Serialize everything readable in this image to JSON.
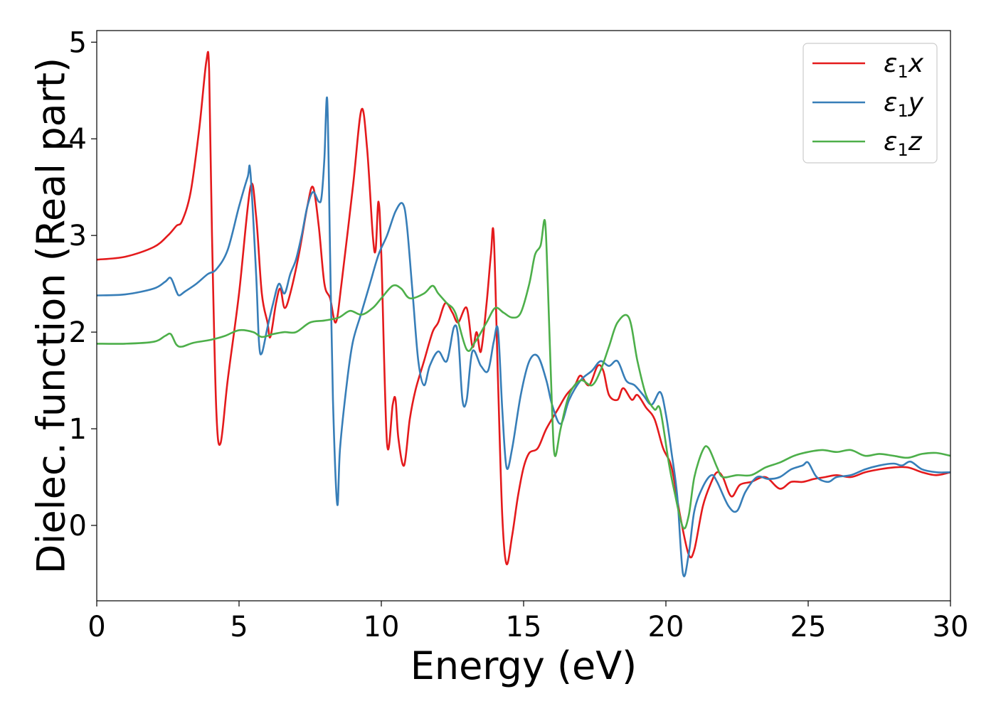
{
  "chart_data": {
    "type": "line",
    "xlabel": "Energy (eV)",
    "ylabel": "Dielec. function (Real part)",
    "xlim": [
      0,
      30
    ],
    "ylim": [
      -0.78,
      5.12
    ],
    "xticks": [
      0,
      5,
      10,
      15,
      20,
      25,
      30
    ],
    "yticks": [
      0,
      1,
      2,
      3,
      4,
      5
    ],
    "grid": false,
    "legend_position": "top-right",
    "series": [
      {
        "name": "ε₁x",
        "legend_base": "ε",
        "legend_sub": "1",
        "legend_axis": "x",
        "color": "#e41a1c",
        "x": [
          0,
          1,
          2,
          2.5,
          2.8,
          3.0,
          3.3,
          3.6,
          3.85,
          3.95,
          4.05,
          4.2,
          4.35,
          4.6,
          5.0,
          5.4,
          5.6,
          5.8,
          6.0,
          6.1,
          6.3,
          6.45,
          6.6,
          6.8,
          7.1,
          7.4,
          7.6,
          7.8,
          8.0,
          8.2,
          8.4,
          8.6,
          9.0,
          9.3,
          9.5,
          9.7,
          9.8,
          9.9,
          10.0,
          10.2,
          10.4,
          10.5,
          10.6,
          10.8,
          11.0,
          11.2,
          11.5,
          11.8,
          12.0,
          12.25,
          12.5,
          12.7,
          13.0,
          13.2,
          13.35,
          13.5,
          13.7,
          13.85,
          13.95,
          14.1,
          14.25,
          14.4,
          14.6,
          14.8,
          15.0,
          15.2,
          15.5,
          15.8,
          16.2,
          16.5,
          16.8,
          17.0,
          17.3,
          17.6,
          17.8,
          18.0,
          18.3,
          18.5,
          18.8,
          19.0,
          19.3,
          19.6,
          19.9,
          20.2,
          20.5,
          20.8,
          21.0,
          21.3,
          21.6,
          21.8,
          22.0,
          22.3,
          22.6,
          23.0,
          23.5,
          24.0,
          24.4,
          24.8,
          25.2,
          25.6,
          26.0,
          26.5,
          27.0,
          27.5,
          28.0,
          28.5,
          29.0,
          29.5,
          30.0
        ],
        "values": [
          2.75,
          2.78,
          2.88,
          3.0,
          3.1,
          3.15,
          3.45,
          4.1,
          4.8,
          4.7,
          3.0,
          1.2,
          0.85,
          1.5,
          2.4,
          3.5,
          3.2,
          2.4,
          2.1,
          1.95,
          2.3,
          2.45,
          2.25,
          2.4,
          2.8,
          3.3,
          3.5,
          3.1,
          2.5,
          2.35,
          2.1,
          2.5,
          3.5,
          4.3,
          3.9,
          3.0,
          2.85,
          3.35,
          2.8,
          0.85,
          1.25,
          1.3,
          0.9,
          0.62,
          1.1,
          1.4,
          1.7,
          2.0,
          2.1,
          2.3,
          2.2,
          2.1,
          2.25,
          1.85,
          2.0,
          1.8,
          2.3,
          2.8,
          3.0,
          1.5,
          0.1,
          -0.4,
          -0.1,
          0.3,
          0.6,
          0.75,
          0.8,
          1.0,
          1.2,
          1.35,
          1.45,
          1.55,
          1.45,
          1.65,
          1.6,
          1.35,
          1.3,
          1.42,
          1.3,
          1.35,
          1.22,
          1.1,
          0.8,
          0.6,
          0.1,
          -0.3,
          -0.25,
          0.2,
          0.45,
          0.55,
          0.5,
          0.3,
          0.42,
          0.45,
          0.5,
          0.38,
          0.45,
          0.45,
          0.48,
          0.5,
          0.52,
          0.5,
          0.55,
          0.58,
          0.6,
          0.6,
          0.55,
          0.52,
          0.55
        ]
      },
      {
        "name": "ε₁y",
        "legend_base": "ε",
        "legend_sub": "1",
        "legend_axis": "y",
        "color": "#377eb8",
        "x": [
          0,
          1,
          2,
          2.4,
          2.6,
          2.8,
          2.9,
          3.1,
          3.5,
          3.9,
          4.2,
          4.6,
          5.0,
          5.3,
          5.4,
          5.6,
          5.7,
          5.8,
          6.0,
          6.2,
          6.4,
          6.6,
          6.8,
          7.0,
          7.2,
          7.4,
          7.6,
          7.8,
          7.9,
          8.0,
          8.1,
          8.2,
          8.3,
          8.45,
          8.55,
          8.8,
          9.0,
          9.3,
          9.6,
          9.9,
          10.2,
          10.5,
          10.75,
          10.9,
          11.1,
          11.3,
          11.5,
          11.7,
          12.0,
          12.3,
          12.55,
          12.7,
          12.85,
          13.0,
          13.2,
          13.5,
          13.75,
          13.95,
          14.1,
          14.25,
          14.4,
          14.6,
          14.9,
          15.2,
          15.5,
          15.8,
          16.0,
          16.3,
          16.6,
          17.0,
          17.4,
          17.7,
          18.0,
          18.3,
          18.6,
          18.9,
          19.2,
          19.5,
          19.8,
          20.0,
          20.2,
          20.4,
          20.6,
          20.8,
          21.0,
          21.3,
          21.6,
          21.8,
          22.2,
          22.5,
          22.8,
          23.2,
          23.6,
          24.0,
          24.4,
          24.8,
          25.0,
          25.3,
          25.7,
          26.0,
          26.5,
          27.0,
          27.5,
          28.0,
          28.3,
          28.6,
          29.0,
          29.5,
          30.0
        ],
        "values": [
          2.38,
          2.39,
          2.45,
          2.52,
          2.56,
          2.42,
          2.38,
          2.42,
          2.5,
          2.6,
          2.65,
          2.85,
          3.3,
          3.6,
          3.65,
          2.6,
          1.9,
          1.78,
          2.05,
          2.3,
          2.5,
          2.4,
          2.6,
          2.75,
          3.0,
          3.3,
          3.45,
          3.35,
          3.4,
          3.8,
          4.4,
          2.8,
          1.3,
          0.22,
          0.8,
          1.5,
          1.9,
          2.2,
          2.5,
          2.8,
          3.0,
          3.25,
          3.33,
          3.1,
          2.4,
          1.7,
          1.45,
          1.65,
          1.8,
          1.7,
          2.05,
          1.95,
          1.3,
          1.3,
          1.8,
          1.65,
          1.6,
          1.9,
          2.02,
          1.2,
          0.6,
          0.8,
          1.35,
          1.7,
          1.75,
          1.5,
          1.25,
          1.05,
          1.3,
          1.5,
          1.6,
          1.7,
          1.65,
          1.7,
          1.5,
          1.45,
          1.35,
          1.25,
          1.38,
          1.15,
          0.75,
          0.3,
          -0.5,
          -0.3,
          0.15,
          0.4,
          0.52,
          0.45,
          0.2,
          0.15,
          0.35,
          0.5,
          0.48,
          0.5,
          0.58,
          0.62,
          0.65,
          0.5,
          0.45,
          0.5,
          0.52,
          0.58,
          0.62,
          0.64,
          0.62,
          0.66,
          0.58,
          0.55,
          0.55
        ]
      },
      {
        "name": "ε₁z",
        "legend_base": "ε",
        "legend_sub": "1",
        "legend_axis": "z",
        "color": "#4daf4a",
        "x": [
          0,
          1,
          2,
          2.4,
          2.6,
          2.8,
          3.0,
          3.4,
          4.0,
          4.5,
          5.0,
          5.5,
          5.8,
          6.2,
          6.6,
          7.0,
          7.5,
          8.0,
          8.5,
          8.9,
          9.3,
          9.7,
          10.0,
          10.4,
          10.7,
          11.0,
          11.5,
          11.8,
          12.0,
          12.3,
          12.6,
          13.0,
          13.3,
          13.7,
          14.0,
          14.3,
          14.6,
          14.9,
          15.2,
          15.4,
          15.6,
          15.75,
          15.85,
          16.0,
          16.1,
          16.3,
          16.6,
          17.0,
          17.4,
          17.7,
          18.0,
          18.3,
          18.7,
          19.0,
          19.3,
          19.6,
          19.8,
          20.1,
          20.3,
          20.6,
          20.8,
          21.0,
          21.3,
          21.5,
          21.8,
          22.0,
          22.5,
          23.0,
          23.5,
          24.0,
          24.5,
          25.0,
          25.5,
          26.0,
          26.5,
          27.0,
          27.5,
          28.0,
          28.5,
          29.0,
          29.5,
          30.0
        ],
        "values": [
          1.88,
          1.88,
          1.9,
          1.96,
          1.98,
          1.87,
          1.85,
          1.89,
          1.92,
          1.96,
          2.02,
          2.0,
          1.95,
          1.98,
          2.0,
          2.0,
          2.1,
          2.12,
          2.15,
          2.22,
          2.18,
          2.25,
          2.35,
          2.48,
          2.45,
          2.35,
          2.4,
          2.48,
          2.4,
          2.3,
          2.2,
          1.82,
          1.9,
          2.1,
          2.25,
          2.2,
          2.15,
          2.2,
          2.5,
          2.8,
          2.9,
          3.15,
          2.5,
          1.2,
          0.72,
          1.0,
          1.35,
          1.5,
          1.45,
          1.6,
          1.85,
          2.1,
          2.15,
          1.7,
          1.35,
          1.2,
          1.2,
          0.65,
          0.35,
          -0.02,
          0.1,
          0.5,
          0.78,
          0.8,
          0.6,
          0.5,
          0.52,
          0.52,
          0.6,
          0.65,
          0.72,
          0.76,
          0.78,
          0.76,
          0.78,
          0.72,
          0.74,
          0.72,
          0.7,
          0.74,
          0.75,
          0.72
        ]
      }
    ]
  }
}
